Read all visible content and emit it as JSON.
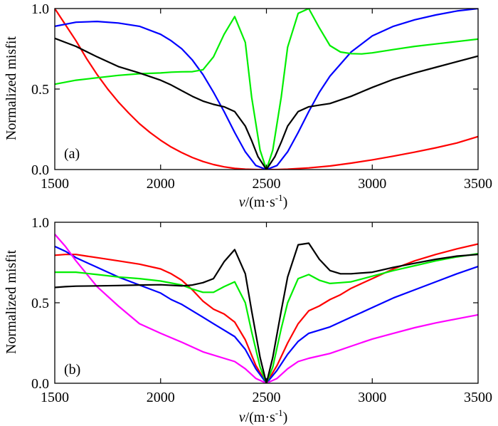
{
  "chart_data": [
    {
      "type": "line",
      "panel_label": "(a)",
      "xlabel_italic": "v",
      "xlabel_rest": "/(m·s",
      "xlabel_sup": "-1",
      "xlabel_close": ")",
      "ylabel": "Normalized misfit",
      "xlim": [
        1500,
        3500
      ],
      "ylim": [
        0,
        1
      ],
      "xticks": [
        1500,
        2000,
        2500,
        3000,
        3500
      ],
      "xtick_labels": [
        "1500",
        "2000",
        "2500",
        "3000",
        "3500"
      ],
      "yticks": [
        0,
        0.5,
        1
      ],
      "ytick_labels": [
        "0.0",
        "0.5",
        "1.0"
      ],
      "series": [
        {
          "name": "red",
          "color": "#ff0000",
          "x": [
            1500,
            1550,
            1600,
            1650,
            1700,
            1750,
            1800,
            1850,
            1900,
            1950,
            2000,
            2050,
            2100,
            2150,
            2200,
            2250,
            2300,
            2350,
            2400,
            2450,
            2500,
            2550,
            2600,
            2700,
            2800,
            2900,
            3000,
            3100,
            3200,
            3300,
            3400,
            3500
          ],
          "y": [
            1.0,
            0.9,
            0.8,
            0.69,
            0.59,
            0.5,
            0.42,
            0.35,
            0.285,
            0.23,
            0.182,
            0.14,
            0.105,
            0.075,
            0.05,
            0.031,
            0.017,
            0.007,
            0.002,
            0.0,
            0.0,
            0.0,
            0.002,
            0.01,
            0.022,
            0.04,
            0.06,
            0.083,
            0.108,
            0.135,
            0.165,
            0.205
          ]
        },
        {
          "name": "blue",
          "color": "#0000ff",
          "x": [
            1500,
            1600,
            1700,
            1800,
            1900,
            2000,
            2050,
            2100,
            2150,
            2200,
            2250,
            2300,
            2350,
            2400,
            2450,
            2500,
            2550,
            2600,
            2650,
            2700,
            2750,
            2800,
            2900,
            3000,
            3100,
            3200,
            3300,
            3400,
            3500
          ],
          "y": [
            0.89,
            0.915,
            0.92,
            0.91,
            0.89,
            0.84,
            0.8,
            0.75,
            0.68,
            0.59,
            0.48,
            0.36,
            0.23,
            0.11,
            0.025,
            0.0,
            0.025,
            0.11,
            0.23,
            0.36,
            0.48,
            0.58,
            0.73,
            0.83,
            0.89,
            0.93,
            0.96,
            0.985,
            1.0
          ]
        },
        {
          "name": "green",
          "color": "#00ee00",
          "x": [
            1500,
            1600,
            1700,
            1800,
            1900,
            2000,
            2050,
            2100,
            2150,
            2200,
            2250,
            2300,
            2350,
            2400,
            2430,
            2470,
            2500,
            2530,
            2570,
            2600,
            2650,
            2700,
            2750,
            2800,
            2850,
            2900,
            2950,
            3000,
            3100,
            3200,
            3300,
            3400,
            3500
          ],
          "y": [
            0.53,
            0.555,
            0.57,
            0.585,
            0.595,
            0.6,
            0.605,
            0.607,
            0.608,
            0.62,
            0.7,
            0.84,
            0.95,
            0.79,
            0.45,
            0.12,
            0.0,
            0.12,
            0.45,
            0.76,
            0.97,
            1.0,
            0.88,
            0.77,
            0.73,
            0.72,
            0.718,
            0.725,
            0.745,
            0.765,
            0.78,
            0.795,
            0.81
          ]
        },
        {
          "name": "black",
          "color": "#000000",
          "x": [
            1500,
            1550,
            1600,
            1700,
            1800,
            1900,
            2000,
            2050,
            2100,
            2150,
            2200,
            2250,
            2300,
            2350,
            2400,
            2430,
            2460,
            2500,
            2540,
            2570,
            2600,
            2650,
            2700,
            2750,
            2800,
            2900,
            3000,
            3100,
            3200,
            3300,
            3400,
            3500
          ],
          "y": [
            0.815,
            0.79,
            0.765,
            0.7,
            0.64,
            0.6,
            0.555,
            0.525,
            0.49,
            0.455,
            0.425,
            0.405,
            0.39,
            0.36,
            0.27,
            0.18,
            0.08,
            0.0,
            0.08,
            0.17,
            0.27,
            0.36,
            0.39,
            0.4,
            0.41,
            0.455,
            0.51,
            0.56,
            0.6,
            0.635,
            0.67,
            0.705
          ]
        }
      ]
    },
    {
      "type": "line",
      "panel_label": "(b)",
      "xlabel_italic": "v",
      "xlabel_rest": "/(m·s",
      "xlabel_sup": "-1",
      "xlabel_close": ")",
      "ylabel": "Normalized misfit",
      "xlim": [
        1500,
        3500
      ],
      "ylim": [
        0,
        1
      ],
      "xticks": [
        1500,
        2000,
        2500,
        3000,
        3500
      ],
      "xtick_labels": [
        "1500",
        "2000",
        "2500",
        "3000",
        "3500"
      ],
      "yticks": [
        0,
        0.5,
        1
      ],
      "ytick_labels": [
        "0.0",
        "0.5",
        "1.0"
      ],
      "series": [
        {
          "name": "red",
          "color": "#ff0000",
          "x": [
            1500,
            1550,
            1600,
            1650,
            1700,
            1800,
            1900,
            2000,
            2050,
            2100,
            2150,
            2200,
            2250,
            2300,
            2350,
            2400,
            2450,
            2500,
            2550,
            2600,
            2650,
            2700,
            2750,
            2800,
            2850,
            2900,
            3000,
            3100,
            3200,
            3300,
            3400,
            3500
          ],
          "y": [
            0.795,
            0.8,
            0.8,
            0.79,
            0.78,
            0.76,
            0.74,
            0.71,
            0.68,
            0.64,
            0.58,
            0.51,
            0.46,
            0.43,
            0.38,
            0.27,
            0.11,
            0.0,
            0.11,
            0.25,
            0.37,
            0.45,
            0.48,
            0.52,
            0.55,
            0.59,
            0.65,
            0.71,
            0.76,
            0.8,
            0.835,
            0.865
          ]
        },
        {
          "name": "blue",
          "color": "#0000ff",
          "x": [
            1500,
            1550,
            1600,
            1700,
            1800,
            1900,
            2000,
            2050,
            2100,
            2150,
            2200,
            2250,
            2300,
            2350,
            2400,
            2450,
            2500,
            2550,
            2600,
            2650,
            2700,
            2750,
            2800,
            2900,
            3000,
            3100,
            3200,
            3300,
            3400,
            3500
          ],
          "y": [
            0.85,
            0.82,
            0.78,
            0.72,
            0.66,
            0.61,
            0.56,
            0.52,
            0.49,
            0.45,
            0.41,
            0.37,
            0.33,
            0.29,
            0.21,
            0.09,
            0.0,
            0.08,
            0.18,
            0.26,
            0.31,
            0.33,
            0.35,
            0.41,
            0.47,
            0.53,
            0.58,
            0.63,
            0.68,
            0.725
          ]
        },
        {
          "name": "magenta",
          "color": "#ff00ff",
          "x": [
            1500,
            1550,
            1600,
            1650,
            1700,
            1800,
            1900,
            2000,
            2100,
            2200,
            2300,
            2350,
            2400,
            2450,
            2500,
            2550,
            2600,
            2650,
            2700,
            2800,
            2900,
            3000,
            3100,
            3200,
            3300,
            3400,
            3500
          ],
          "y": [
            0.925,
            0.85,
            0.76,
            0.68,
            0.6,
            0.48,
            0.37,
            0.31,
            0.255,
            0.195,
            0.155,
            0.135,
            0.09,
            0.03,
            0.0,
            0.03,
            0.09,
            0.135,
            0.155,
            0.185,
            0.23,
            0.275,
            0.31,
            0.345,
            0.375,
            0.4,
            0.425
          ]
        },
        {
          "name": "green",
          "color": "#00ee00",
          "x": [
            1500,
            1600,
            1700,
            1800,
            1900,
            2000,
            2100,
            2150,
            2200,
            2250,
            2300,
            2350,
            2400,
            2430,
            2470,
            2500,
            2530,
            2570,
            2600,
            2650,
            2700,
            2750,
            2800,
            2850,
            2900,
            3000,
            3100,
            3200,
            3300,
            3400,
            3500
          ],
          "y": [
            0.69,
            0.69,
            0.675,
            0.66,
            0.65,
            0.635,
            0.61,
            0.585,
            0.565,
            0.565,
            0.6,
            0.63,
            0.5,
            0.32,
            0.1,
            0.0,
            0.1,
            0.34,
            0.5,
            0.65,
            0.675,
            0.64,
            0.62,
            0.625,
            0.63,
            0.665,
            0.7,
            0.73,
            0.76,
            0.785,
            0.805
          ]
        },
        {
          "name": "black",
          "color": "#000000",
          "x": [
            1500,
            1550,
            1600,
            1700,
            1800,
            1900,
            2000,
            2100,
            2150,
            2200,
            2250,
            2300,
            2350,
            2400,
            2430,
            2470,
            2500,
            2530,
            2570,
            2600,
            2650,
            2700,
            2750,
            2800,
            2850,
            2900,
            3000,
            3100,
            3200,
            3300,
            3400,
            3500
          ],
          "y": [
            0.595,
            0.6,
            0.603,
            0.605,
            0.607,
            0.61,
            0.612,
            0.605,
            0.61,
            0.625,
            0.65,
            0.755,
            0.83,
            0.68,
            0.45,
            0.16,
            0.0,
            0.16,
            0.45,
            0.66,
            0.86,
            0.87,
            0.77,
            0.7,
            0.68,
            0.68,
            0.69,
            0.72,
            0.745,
            0.77,
            0.79,
            0.8
          ]
        }
      ]
    }
  ]
}
